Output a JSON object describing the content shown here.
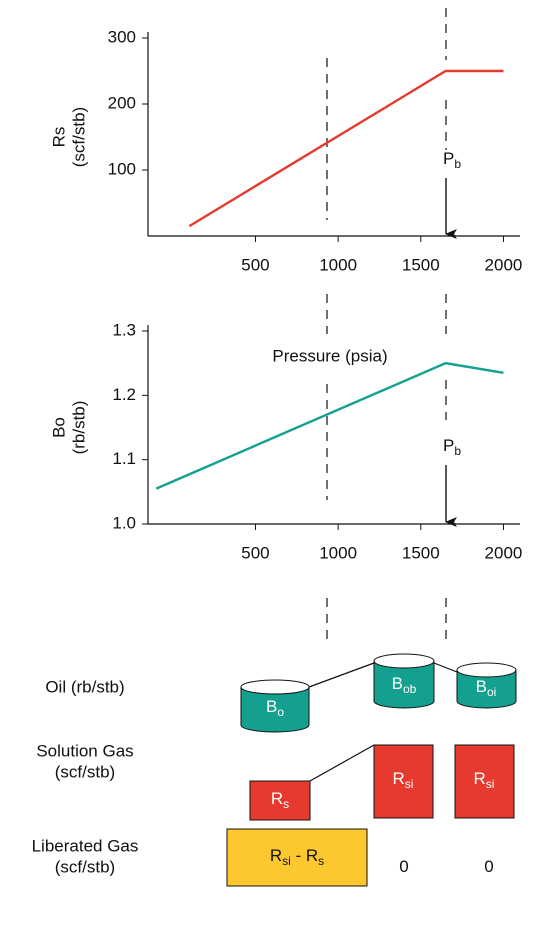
{
  "chart_data": [
    {
      "type": "line",
      "y_label": [
        "Rs",
        "(scf/stb)"
      ],
      "x_label": "Pressure (psia)",
      "annotation": [
        "P",
        "b"
      ],
      "xlim": [
        -150,
        2100
      ],
      "xticks": [
        500,
        1000,
        1500,
        2000
      ],
      "ylim": [
        0,
        300
      ],
      "yticks": [
        100,
        200,
        300
      ],
      "series": [
        {
          "color": "#e63a2e",
          "x": [
            100,
            1650,
            2000
          ],
          "values": [
            15,
            250,
            250
          ]
        }
      ]
    },
    {
      "type": "line",
      "y_label": [
        "Bo",
        "(rb/stb)"
      ],
      "annotation": [
        "P",
        "b"
      ],
      "xlim": [
        -150,
        2100
      ],
      "xticks": [
        500,
        1000,
        1500,
        2000
      ],
      "ylim": [
        1.0,
        1.3
      ],
      "yticks": [
        {
          "value": 1.0,
          "label": "1.0"
        },
        1.1,
        1.2,
        1.3
      ],
      "series": [
        {
          "color": "#14a08f",
          "x": [
            -100,
            1650,
            2000
          ],
          "values": [
            1.055,
            1.25,
            1.235
          ]
        }
      ]
    }
  ],
  "rows": [
    {
      "label": [
        "Oil (rb/stb)"
      ],
      "cells": [
        [
          "B",
          "o"
        ],
        [
          "B",
          "ob"
        ],
        [
          "B",
          "oi"
        ]
      ]
    },
    {
      "label": [
        "Solution Gas",
        "(scf/stb)"
      ],
      "cells": [
        [
          "R",
          "s"
        ],
        [
          "R",
          "si"
        ],
        [
          "R",
          "si"
        ]
      ]
    },
    {
      "label": [
        "Liberated Gas",
        "(scf/stb)"
      ],
      "cells": [
        [
          "R",
          "si",
          " - R",
          "s"
        ],
        [
          "0"
        ],
        [
          "0"
        ]
      ]
    }
  ]
}
